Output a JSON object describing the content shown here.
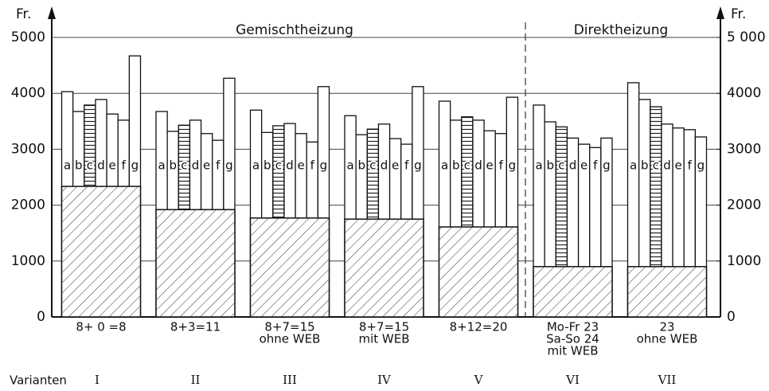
{
  "chart_data": {
    "type": "bar",
    "y_label": "Fr.",
    "y2_label": "Fr.",
    "annotations": [
      "Gemischtheizung",
      "Direktheizung"
    ],
    "categories": [
      [
        "8+ 0 =8"
      ],
      [
        "8+3=11"
      ],
      [
        "8+7=15",
        "ohne WEB"
      ],
      [
        "8+7=15",
        "mit WEB"
      ],
      [
        "8+12=20"
      ],
      [
        "Mo-Fr 23",
        "Sa-So 24",
        "mit WEB"
      ],
      [
        "23",
        "ohne WEB"
      ]
    ],
    "variants_label": "Varianten",
    "variants": [
      "I",
      "II",
      "III",
      "IV",
      "V",
      "VI",
      "VII"
    ],
    "series": [
      {
        "name": "a",
        "values": [
          4030,
          3675,
          3700,
          3600,
          3860,
          3790,
          4190
        ]
      },
      {
        "name": "b",
        "values": [
          3675,
          3320,
          3300,
          3260,
          3520,
          3490,
          3890
        ]
      },
      {
        "name": "c",
        "values": [
          3790,
          3430,
          3420,
          3360,
          3580,
          3400,
          3760
        ]
      },
      {
        "name": "d",
        "values": [
          3890,
          3520,
          3460,
          3450,
          3520,
          3200,
          3450
        ]
      },
      {
        "name": "e",
        "values": [
          3630,
          3280,
          3280,
          3190,
          3330,
          3090,
          3380
        ]
      },
      {
        "name": "f",
        "values": [
          3520,
          3160,
          3130,
          3090,
          3280,
          3030,
          3350
        ]
      },
      {
        "name": "g",
        "values": [
          4670,
          4270,
          4120,
          4120,
          3930,
          3200,
          3220
        ]
      }
    ],
    "base": {
      "values": [
        2335,
        1920,
        1770,
        1750,
        1610,
        900,
        900
      ]
    },
    "ylim": [
      0,
      5000
    ],
    "yticks": [
      0,
      1000,
      2000,
      3000,
      4000,
      5000
    ],
    "y2lim": [
      0,
      5000
    ],
    "y2ticks": [
      0,
      1000,
      2000,
      3000,
      4000,
      {
        "value": 5000,
        "label": "5 000"
      }
    ],
    "grid": true
  }
}
